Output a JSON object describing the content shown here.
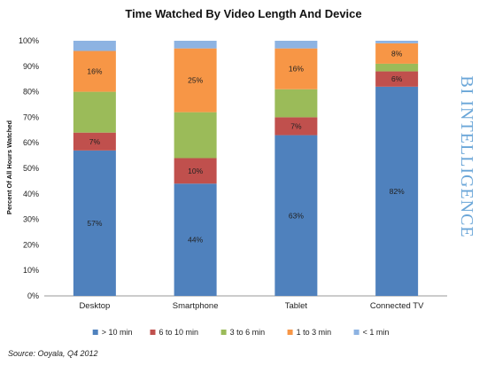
{
  "chart_data": {
    "type": "bar",
    "stacked": true,
    "title": "Time Watched By Video Length And Device",
    "ylabel": "Percent Of All Hours Watched",
    "xlabel": "",
    "ylim": [
      0,
      100
    ],
    "yticks": [
      "0%",
      "10%",
      "20%",
      "30%",
      "40%",
      "50%",
      "60%",
      "70%",
      "80%",
      "90%",
      "100%"
    ],
    "categories": [
      "Desktop",
      "Smartphone",
      "Tablet",
      "Connected TV"
    ],
    "series": [
      {
        "name": "> 10 min",
        "color": "#4f81bd",
        "values": [
          57,
          44,
          63,
          82
        ],
        "labels": [
          "57%",
          "44%",
          "63%",
          "82%"
        ]
      },
      {
        "name": "6 to 10 min",
        "color": "#c0504d",
        "values": [
          7,
          10,
          7,
          6
        ],
        "labels": [
          "7%",
          "10%",
          "7%",
          "6%"
        ]
      },
      {
        "name": "3 to 6 min",
        "color": "#9bbb59",
        "values": [
          16,
          18,
          11,
          3
        ],
        "labels": [
          "",
          "",
          "",
          ""
        ]
      },
      {
        "name": "1 to 3 min",
        "color": "#f79646",
        "values": [
          16,
          25,
          16,
          8
        ],
        "labels": [
          "16%",
          "25%",
          "16%",
          "8%"
        ]
      },
      {
        "name": "< 1 min",
        "color": "#8db3e2",
        "values": [
          4,
          3,
          3,
          1
        ],
        "labels": [
          "",
          "",
          "",
          ""
        ]
      }
    ],
    "legend_position": "bottom",
    "grid": false
  },
  "source": "Source: Ooyala, Q4 2012",
  "watermark": "BI INTELLIGENCE"
}
